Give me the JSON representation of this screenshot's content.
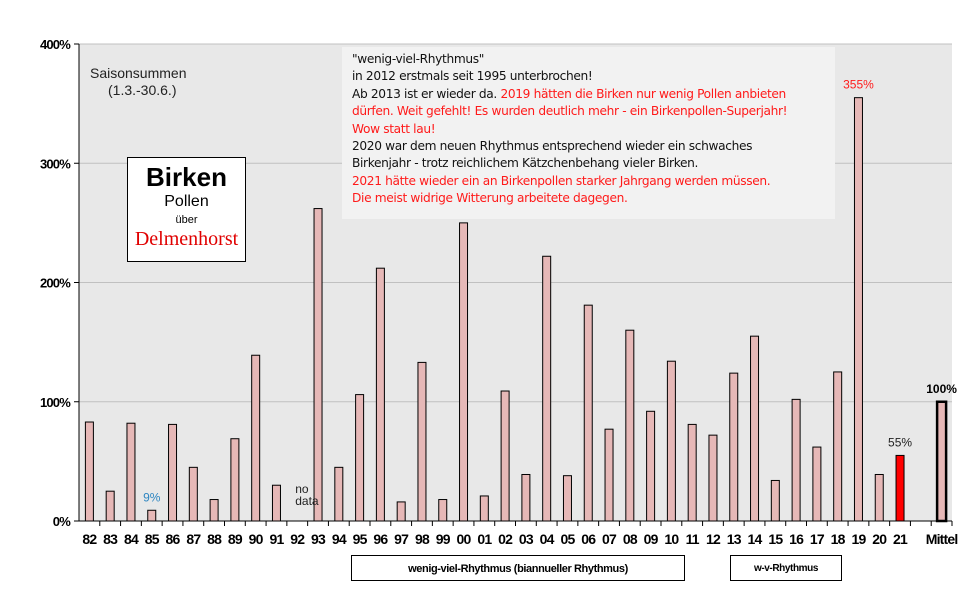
{
  "chart_data": {
    "type": "bar",
    "ylim": [
      0,
      400
    ],
    "yticks": [
      "0%",
      "100%",
      "200%",
      "300%",
      "400%"
    ],
    "grid": true,
    "categories": [
      "82",
      "83",
      "84",
      "85",
      "86",
      "87",
      "88",
      "89",
      "90",
      "91",
      "92",
      "93",
      "94",
      "95",
      "96",
      "97",
      "98",
      "99",
      "00",
      "01",
      "02",
      "03",
      "04",
      "05",
      "06",
      "07",
      "08",
      "09",
      "10",
      "11",
      "12",
      "13",
      "14",
      "15",
      "16",
      "17",
      "18",
      "19",
      "20",
      "21",
      "",
      "Mittel"
    ],
    "values": [
      83,
      25,
      82,
      9,
      81,
      45,
      18,
      69,
      139,
      30,
      null,
      262,
      45,
      106,
      212,
      16,
      133,
      18,
      250,
      21,
      109,
      39,
      222,
      38,
      181,
      77,
      160,
      92,
      134,
      81,
      72,
      124,
      155,
      34,
      102,
      62,
      125,
      355,
      39,
      55,
      null,
      100
    ],
    "unit": "%",
    "colors": {
      "bar": "#e6b8b7",
      "current": "#ff0000",
      "grid": "#c0c0c0",
      "plot_bg": "#e8e8e8"
    },
    "data_labels": [
      {
        "category": "85",
        "text": "9%",
        "color": "#2e86c1"
      },
      {
        "category": "92",
        "text": "no data",
        "color": "#222222"
      },
      {
        "category": "19",
        "text": "355%",
        "color": "#ff1a1a"
      },
      {
        "category": "21",
        "text": "55%",
        "color": "#222222"
      },
      {
        "category": "Mittel",
        "text": "100%",
        "color": "#000000"
      }
    ]
  },
  "season": {
    "line1": "Saisonsummen",
    "line2": "(1.3.-30.6.)"
  },
  "title_box": {
    "line1": "Birken",
    "line2": "Pollen",
    "line3": "über",
    "line4": "Delmenhorst"
  },
  "note": {
    "l1": "\"wenig-viel-Rhythmus\"",
    "l2": "in 2012  erstmals seit 1995  unterbrochen!",
    "l3a": "Ab 2013  ist er wieder da. ",
    "l3b": "2019  hätten die Birken nur wenig Pollen anbieten",
    "l4": "dürfen. Weit gefehlt! Es wurden deutlich mehr - ein Birkenpollen-Superjahr!",
    "l5": "Wow statt lau!",
    "l6": "2020  war dem neuen Rhythmus entsprechend wieder ein schwaches",
    "l7": "Birkenjahr - trotz reichlichem Kätzchenbehang vieler Birken.",
    "l8": "2021  hätte wieder ein an Birkenpollen starker Jahrgang werden müssen.",
    "l9": "Die meist widrige Witterung arbeitete dagegen."
  },
  "rhythm_boxes": {
    "box1": "wenig-viel-Rhythmus (biannueller Rhythmus)",
    "box2": "w-v-Rhythmus"
  }
}
